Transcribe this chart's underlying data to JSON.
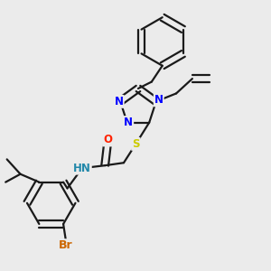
{
  "bg_color": "#ebebeb",
  "bond_color": "#1a1a1a",
  "atom_colors": {
    "N": "#0000ff",
    "S": "#cccc00",
    "O": "#ff2200",
    "Br": "#cc6600",
    "H": "#2288aa",
    "C": "#1a1a1a"
  },
  "font_size": 8.5,
  "bond_width": 1.6
}
